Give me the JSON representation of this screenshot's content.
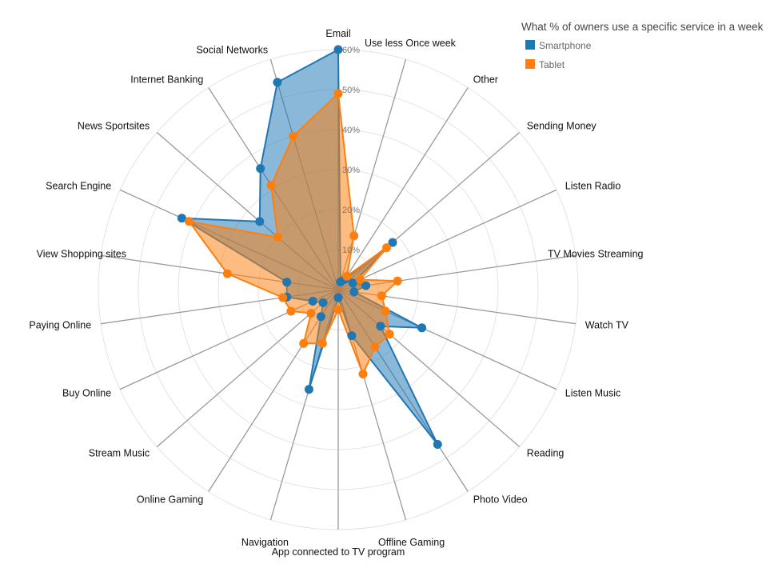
{
  "chart_data": {
    "type": "radar",
    "title": "What % of owners use a specific service in a week",
    "axes": [
      "Email",
      "Use less Once week",
      "Other",
      "Sending Money",
      "Listen Radio",
      "TV Movies Streaming",
      "Watch TV",
      "Listen Music",
      "Reading",
      "Photo Video",
      "Offline Gaming",
      "App connected to TV program",
      "Navigation",
      "Online Gaming",
      "Stream Music",
      "Buy Online",
      "Paying Online",
      "View Shopping sites",
      "Search Engine",
      "News Sportsites",
      "Internet Banking",
      "Social Networks"
    ],
    "rlim": [
      0,
      60
    ],
    "ticks": [
      10,
      20,
      30,
      40,
      50,
      60
    ],
    "tick_labels": [
      "10%",
      "20%",
      "30%",
      "40%",
      "50%",
      "60%"
    ],
    "grid": true,
    "legend_position": "top-right",
    "series": [
      {
        "name": "Smartphone",
        "color": "#1f77b4",
        "values": [
          60,
          2,
          3,
          18,
          4,
          7,
          4,
          23,
          14,
          46,
          12,
          2,
          26,
          8,
          5,
          7,
          13,
          13,
          43,
          26,
          36,
          54
        ]
      },
      {
        "name": "Tablet",
        "color": "#ff7f0e",
        "values": [
          49,
          14,
          4,
          16,
          6,
          15,
          11,
          13,
          17,
          17,
          22,
          5,
          14,
          16,
          9,
          13,
          14,
          28,
          41,
          20,
          31,
          40
        ]
      }
    ]
  }
}
